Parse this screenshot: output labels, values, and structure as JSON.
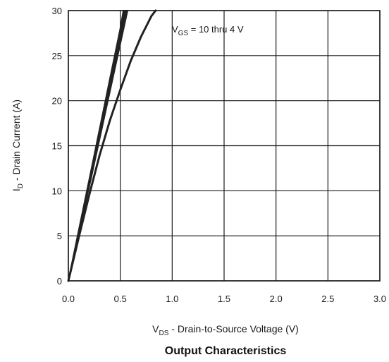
{
  "chart_data": {
    "type": "line",
    "title": "Output Characteristics",
    "xlabel": {
      "main": "V",
      "sub": "DS",
      "rest": " - Drain-to-Source Voltage (V)"
    },
    "ylabel": {
      "main": "I",
      "sub": "D",
      "rest": " - Drain Current (A)"
    },
    "xlim": [
      0,
      3.0
    ],
    "ylim": [
      0,
      30
    ],
    "x_ticks": [
      "0.0",
      "0.5",
      "1.0",
      "1.5",
      "2.0",
      "2.5",
      "3.0"
    ],
    "y_ticks": [
      "0",
      "5",
      "10",
      "15",
      "20",
      "25",
      "30"
    ],
    "grid": true,
    "annotation": {
      "main": "V",
      "sub": "GS",
      "rest": " = 10 thru 4 V"
    },
    "series": [
      {
        "x": [
          0,
          0.1,
          0.2,
          0.3,
          0.4,
          0.5,
          0.53
        ],
        "y": [
          0,
          5.6,
          11.2,
          16.8,
          22.4,
          28.0,
          30.0
        ]
      },
      {
        "x": [
          0,
          0.1,
          0.2,
          0.3,
          0.4,
          0.5,
          0.54
        ],
        "y": [
          0,
          5.5,
          11.0,
          16.5,
          22.0,
          27.6,
          30.0
        ]
      },
      {
        "x": [
          0,
          0.1,
          0.2,
          0.3,
          0.4,
          0.5,
          0.55
        ],
        "y": [
          0,
          5.4,
          10.8,
          16.3,
          21.7,
          27.2,
          30.0
        ]
      },
      {
        "x": [
          0,
          0.1,
          0.2,
          0.3,
          0.4,
          0.5,
          0.56
        ],
        "y": [
          0,
          5.3,
          10.6,
          16.0,
          21.4,
          26.8,
          30.0
        ]
      },
      {
        "x": [
          0,
          0.1,
          0.2,
          0.3,
          0.4,
          0.5,
          0.57
        ],
        "y": [
          0,
          5.2,
          10.4,
          15.7,
          21.0,
          26.3,
          30.0
        ]
      },
      {
        "x": [
          0,
          0.1,
          0.2,
          0.3,
          0.4,
          0.5,
          0.6,
          0.7,
          0.8,
          0.84
        ],
        "y": [
          0,
          4.8,
          9.5,
          13.9,
          17.8,
          21.2,
          24.4,
          27.1,
          29.4,
          30.0
        ]
      }
    ],
    "colors": {
      "curve": "#222222",
      "grid": "#1a1a1a"
    }
  }
}
